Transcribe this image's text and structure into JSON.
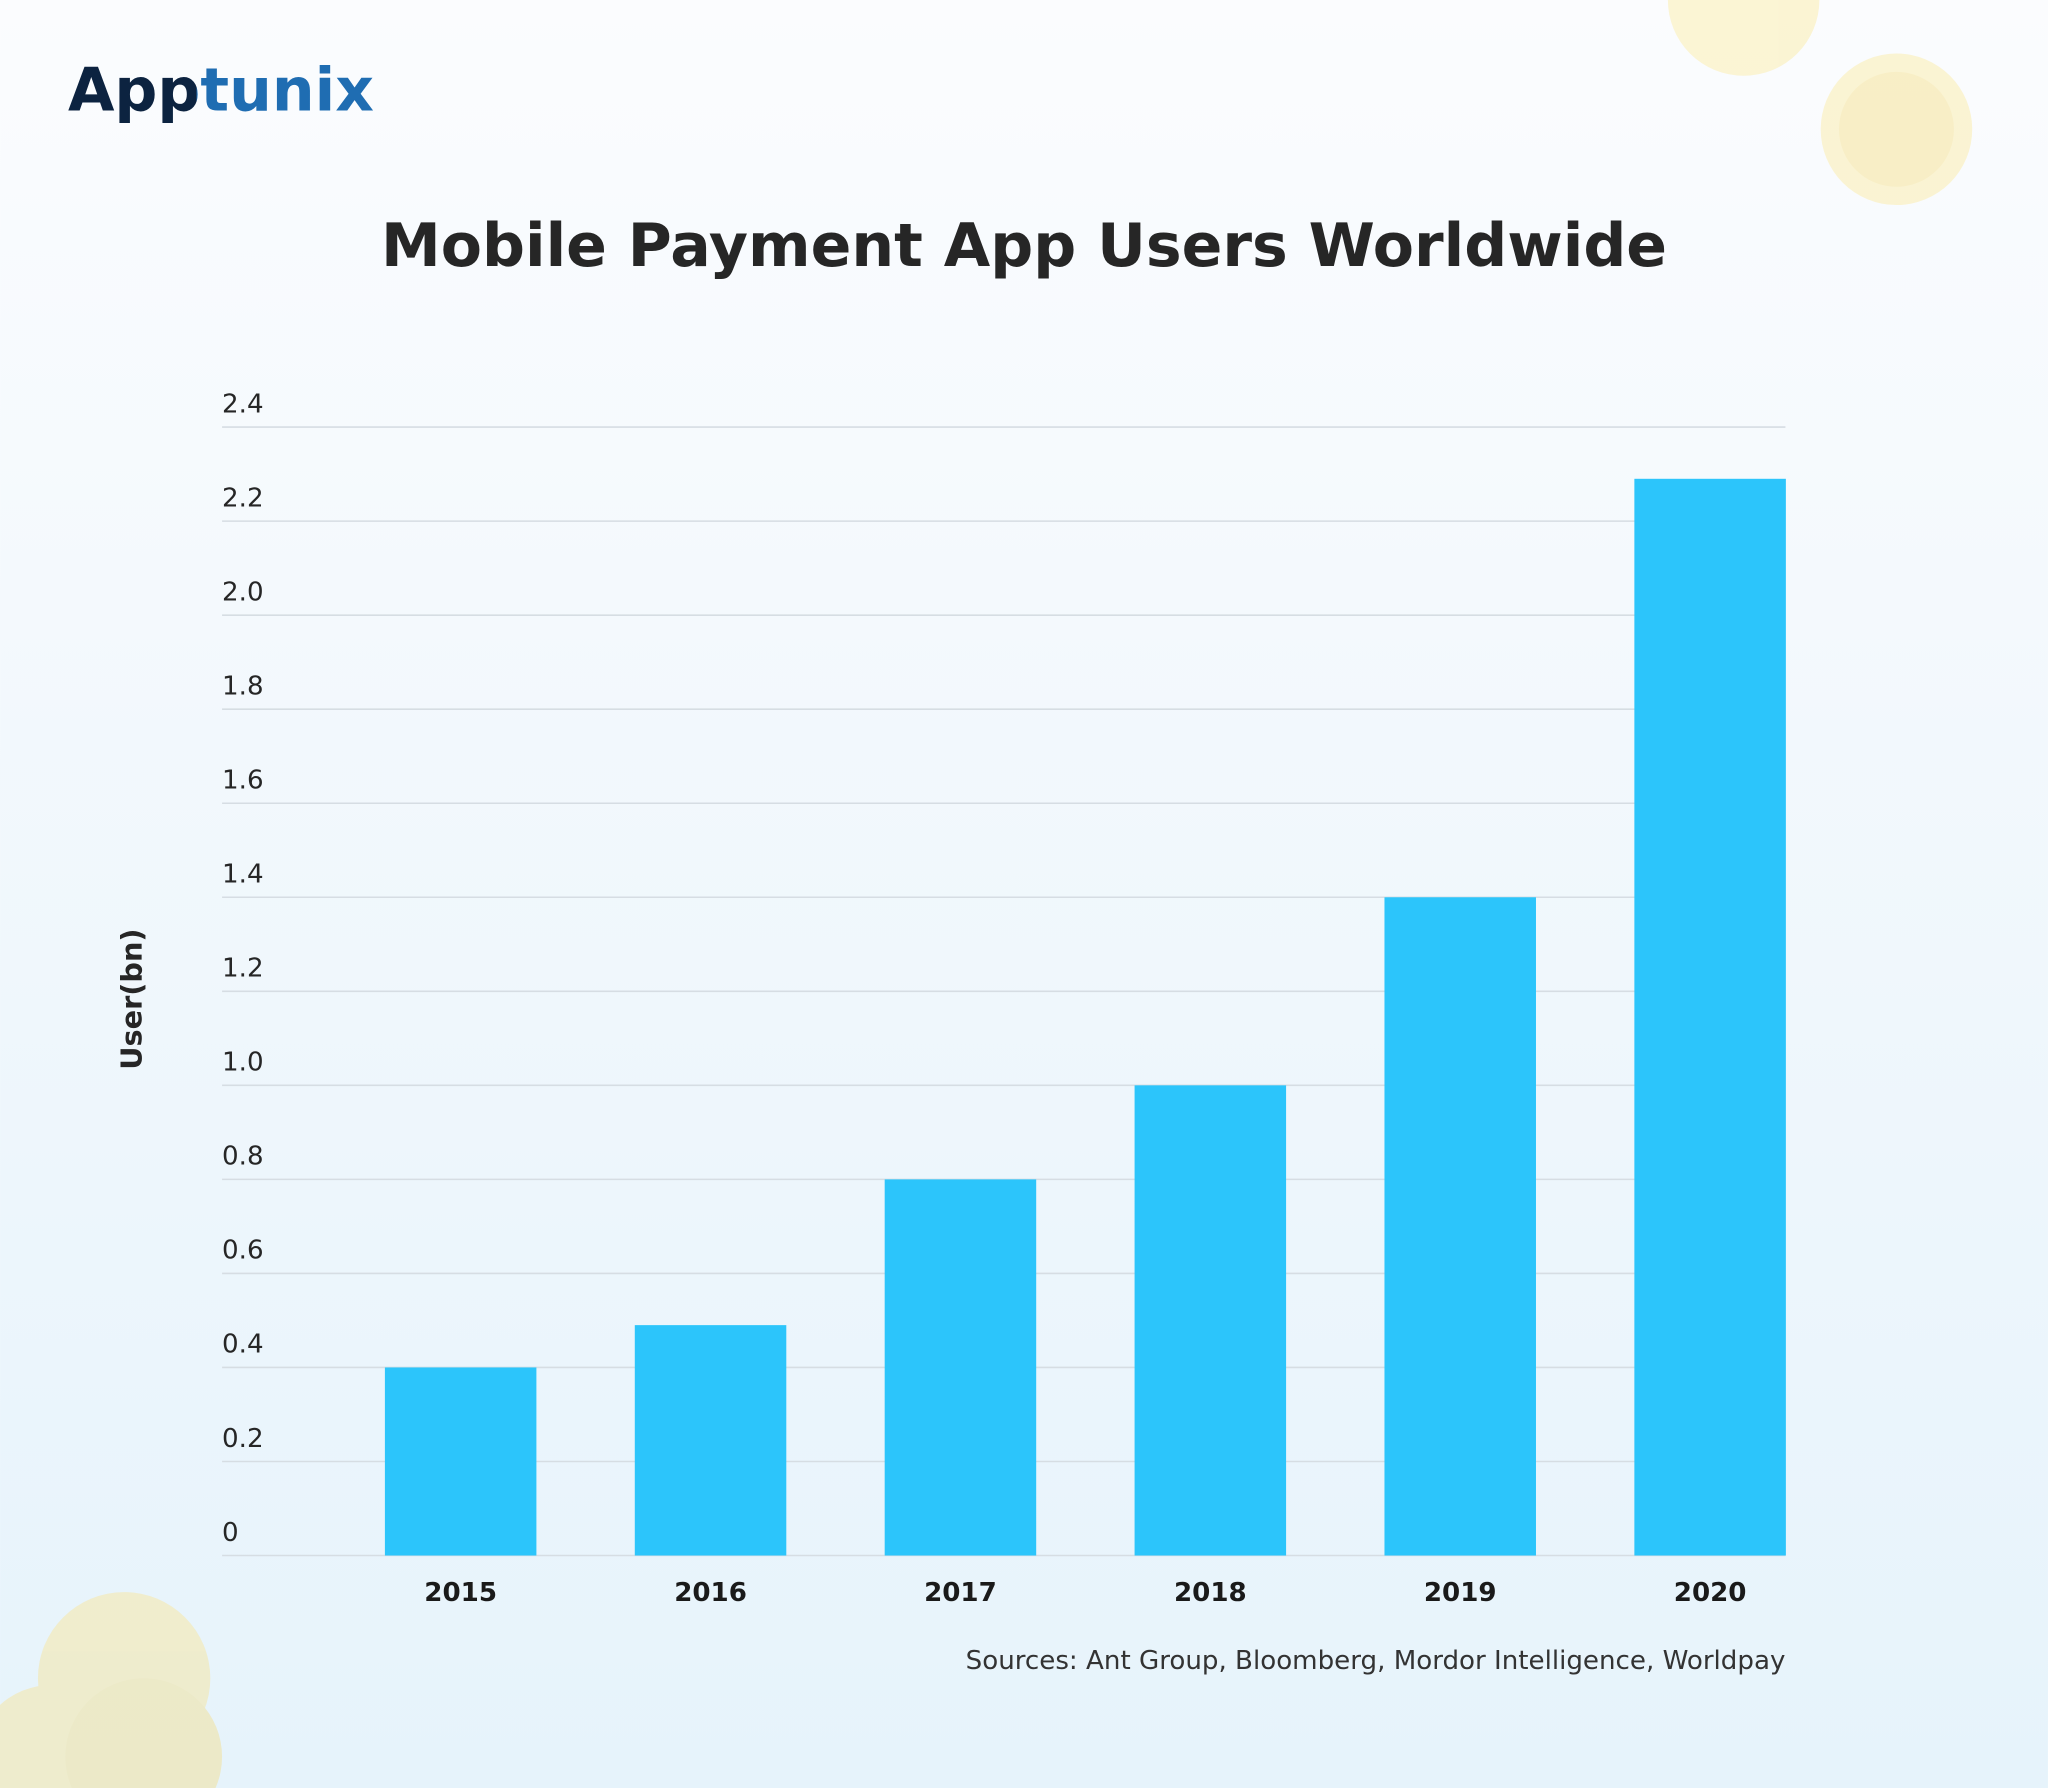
{
  "logo": "Apptunix",
  "chart_data": {
    "type": "bar",
    "title": "Mobile Payment App Users Worldwide",
    "y_label": "User(bn)",
    "categories": [
      "2015",
      "2016",
      "2017",
      "2018",
      "2019",
      "2020"
    ],
    "values": [
      0.4,
      0.49,
      0.8,
      1.0,
      1.4,
      2.29
    ],
    "color": "#2cc5fb",
    "ylim": [
      0,
      2.4
    ],
    "yticks": [
      0,
      0.2,
      0.4,
      0.6,
      0.8,
      {
        "value": 1.0,
        "label": "1.0"
      },
      1.2,
      1.4,
      1.6,
      1.8,
      {
        "value": 2.0,
        "label": "2.0"
      },
      2.2,
      2.4
    ],
    "grid": true,
    "source": "Sources: Ant Group, Bloomberg, Mordor Intelligence, Worldpay"
  }
}
